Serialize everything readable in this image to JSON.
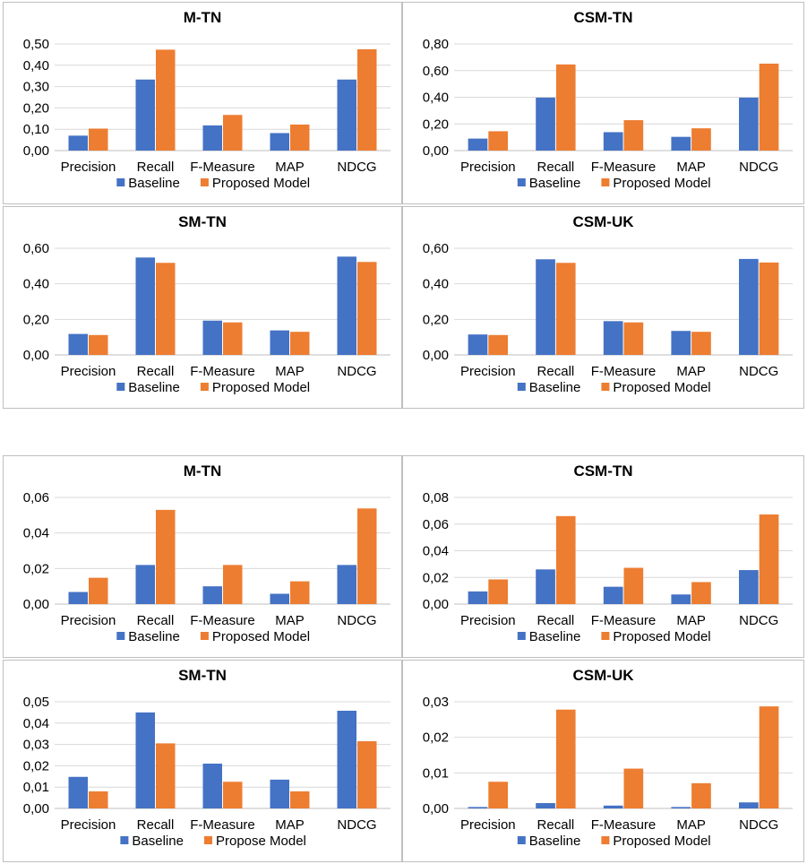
{
  "colors": {
    "baseline": "#4472c4",
    "proposed": "#ed7d31"
  },
  "chart_data": [
    {
      "type": "bar",
      "title": "M-TN",
      "categories": [
        "Precision",
        "Recall",
        "F-Measure",
        "MAP",
        "NDCG"
      ],
      "yticks": [
        "0,00",
        "0,10",
        "0,20",
        "0,30",
        "0,40",
        "0,50"
      ],
      "ylim": [
        0,
        0.5
      ],
      "series": [
        {
          "name": "Baseline",
          "values": [
            0.07,
            0.333,
            0.118,
            0.082,
            0.333
          ]
        },
        {
          "name": "Proposed Model",
          "values": [
            0.103,
            0.473,
            0.167,
            0.122,
            0.475
          ]
        }
      ],
      "legend": "bottom"
    },
    {
      "type": "bar",
      "title": "CSM-TN",
      "categories": [
        "Precision",
        "Recall",
        "F-Measure",
        "MAP",
        "NDCG"
      ],
      "yticks": [
        "0,00",
        "0,20",
        "0,40",
        "0,60",
        "0,80"
      ],
      "ylim": [
        0,
        0.8
      ],
      "series": [
        {
          "name": "Baseline",
          "values": [
            0.09,
            0.397,
            0.138,
            0.103,
            0.397
          ]
        },
        {
          "name": "Proposed Model",
          "values": [
            0.145,
            0.646,
            0.228,
            0.167,
            0.652
          ]
        }
      ],
      "legend": "bottom"
    },
    {
      "type": "bar",
      "title": "SM-TN",
      "categories": [
        "Precision",
        "Recall",
        "F-Measure",
        "MAP",
        "NDCG"
      ],
      "yticks": [
        "0,00",
        "0,20",
        "0,40",
        "0,60"
      ],
      "ylim": [
        0,
        0.6
      ],
      "series": [
        {
          "name": "Baseline",
          "values": [
            0.118,
            0.548,
            0.193,
            0.138,
            0.553
          ]
        },
        {
          "name": "Proposed Model",
          "values": [
            0.112,
            0.518,
            0.183,
            0.13,
            0.523
          ]
        }
      ],
      "legend": "bottom"
    },
    {
      "type": "bar",
      "title": "CSM-UK",
      "categories": [
        "Precision",
        "Recall",
        "F-Measure",
        "MAP",
        "NDCG"
      ],
      "yticks": [
        "0,00",
        "0,20",
        "0,40",
        "0,60"
      ],
      "ylim": [
        0,
        0.6
      ],
      "series": [
        {
          "name": "Baseline",
          "values": [
            0.115,
            0.538,
            0.19,
            0.135,
            0.54
          ]
        },
        {
          "name": "Proposed Model",
          "values": [
            0.112,
            0.518,
            0.183,
            0.13,
            0.52
          ]
        }
      ],
      "legend": "bottom"
    },
    {
      "type": "bar",
      "title": "M-TN",
      "categories": [
        "Precision",
        "Recall",
        "F-Measure",
        "MAP",
        "NDCG"
      ],
      "yticks": [
        "0,00",
        "0,02",
        "0,04",
        "0,06"
      ],
      "ylim": [
        0,
        0.06
      ],
      "series": [
        {
          "name": "Baseline",
          "values": [
            0.0068,
            0.022,
            0.01,
            0.0058,
            0.022
          ]
        },
        {
          "name": "Proposed Model",
          "values": [
            0.0148,
            0.053,
            0.022,
            0.0128,
            0.0538
          ]
        }
      ],
      "legend": "bottom"
    },
    {
      "type": "bar",
      "title": "CSM-TN",
      "categories": [
        "Precision",
        "Recall",
        "F-Measure",
        "MAP",
        "NDCG"
      ],
      "yticks": [
        "0,00",
        "0,02",
        "0,04",
        "0,06",
        "0,08"
      ],
      "ylim": [
        0,
        0.08
      ],
      "series": [
        {
          "name": "Baseline",
          "values": [
            0.0095,
            0.026,
            0.013,
            0.0072,
            0.0255
          ]
        },
        {
          "name": "Proposed Model",
          "values": [
            0.0185,
            0.066,
            0.0272,
            0.0165,
            0.0672
          ]
        }
      ],
      "legend": "bottom"
    },
    {
      "type": "bar",
      "title": "SM-TN",
      "categories": [
        "Precision",
        "Recall",
        "F-Measure",
        "MAP",
        "NDCG"
      ],
      "yticks": [
        "0,00",
        "0,01",
        "0,02",
        "0,03",
        "0,04",
        "0,05"
      ],
      "ylim": [
        0,
        0.05
      ],
      "series": [
        {
          "name": "Baseline",
          "values": [
            0.0148,
            0.045,
            0.021,
            0.0135,
            0.0458
          ]
        },
        {
          "name": "Propose Model",
          "values": [
            0.008,
            0.0305,
            0.0125,
            0.008,
            0.0315
          ]
        }
      ],
      "legend": "bottom"
    },
    {
      "type": "bar",
      "title": "CSM-UK",
      "categories": [
        "Precision",
        "Recall",
        "F-Measure",
        "MAP",
        "NDCG"
      ],
      "yticks": [
        "0,00",
        "0,01",
        "0,02",
        "0,03"
      ],
      "ylim": [
        0,
        0.03
      ],
      "series": [
        {
          "name": "Baseline",
          "values": [
            0.0004,
            0.0015,
            0.0008,
            0.0004,
            0.0017
          ]
        },
        {
          "name": "Proposed Model",
          "values": [
            0.0075,
            0.0278,
            0.0112,
            0.0071,
            0.0287
          ]
        }
      ],
      "legend": "bottom"
    }
  ]
}
